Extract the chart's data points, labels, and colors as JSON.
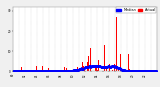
{
  "bg_color": "#f0f0f0",
  "plot_bg": "#ffffff",
  "bar_color": "#ff0000",
  "median_color": "#0000ff",
  "n_points": 1440,
  "seed": 42,
  "legend_actual": "Actual",
  "legend_median": "Median",
  "ylim": [
    0,
    32
  ],
  "grid_color": "#aaaaaa",
  "title_fontsize": 3.5,
  "tick_fontsize": 2.0,
  "legend_fontsize": 2.5
}
